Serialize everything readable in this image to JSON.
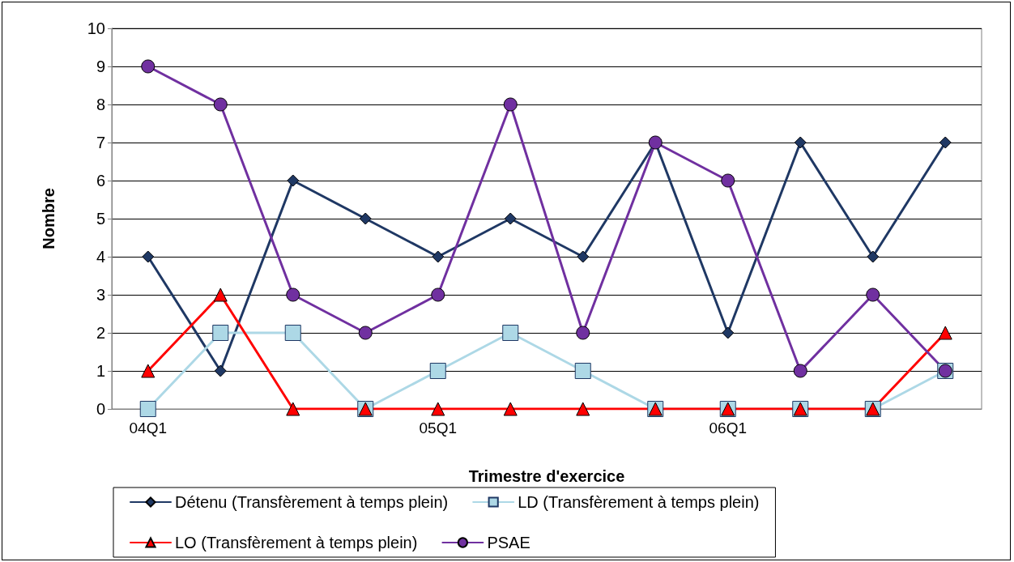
{
  "chart_data": {
    "type": "line",
    "xlabel": "Trimestre d'exercice",
    "ylabel": "Nombre",
    "categories": [
      "04Q1",
      null,
      null,
      null,
      "05Q1",
      null,
      null,
      null,
      "06Q1",
      null,
      null,
      null
    ],
    "series": [
      {
        "name": "Détenu (Transfèrement à temps plein)",
        "color": "#1f3864",
        "marker": "diamond",
        "values": [
          4,
          1,
          6,
          5,
          4,
          5,
          4,
          7,
          2,
          7,
          4,
          7
        ]
      },
      {
        "name": "LD (Transfèrement à temps plein)",
        "color": "#add8e6",
        "marker": "square",
        "values": [
          0,
          2,
          2,
          0,
          1,
          2,
          1,
          0,
          0,
          0,
          0,
          1
        ]
      },
      {
        "name": "LO (Transfèrement à temps plein)",
        "color": "#ff0000",
        "marker": "triangle",
        "values": [
          1,
          3,
          0,
          0,
          0,
          0,
          0,
          0,
          0,
          0,
          0,
          2
        ]
      },
      {
        "name": "PSAE",
        "color": "#7030a0",
        "marker": "circle",
        "values": [
          9,
          8,
          3,
          2,
          3,
          8,
          2,
          7,
          6,
          1,
          3,
          1
        ]
      }
    ],
    "ylim": [
      0,
      10
    ],
    "yticks": [
      0,
      1,
      2,
      3,
      4,
      5,
      6,
      7,
      8,
      9,
      10
    ],
    "grid": "y",
    "legend": "bottom",
    "line_style": "solid"
  }
}
